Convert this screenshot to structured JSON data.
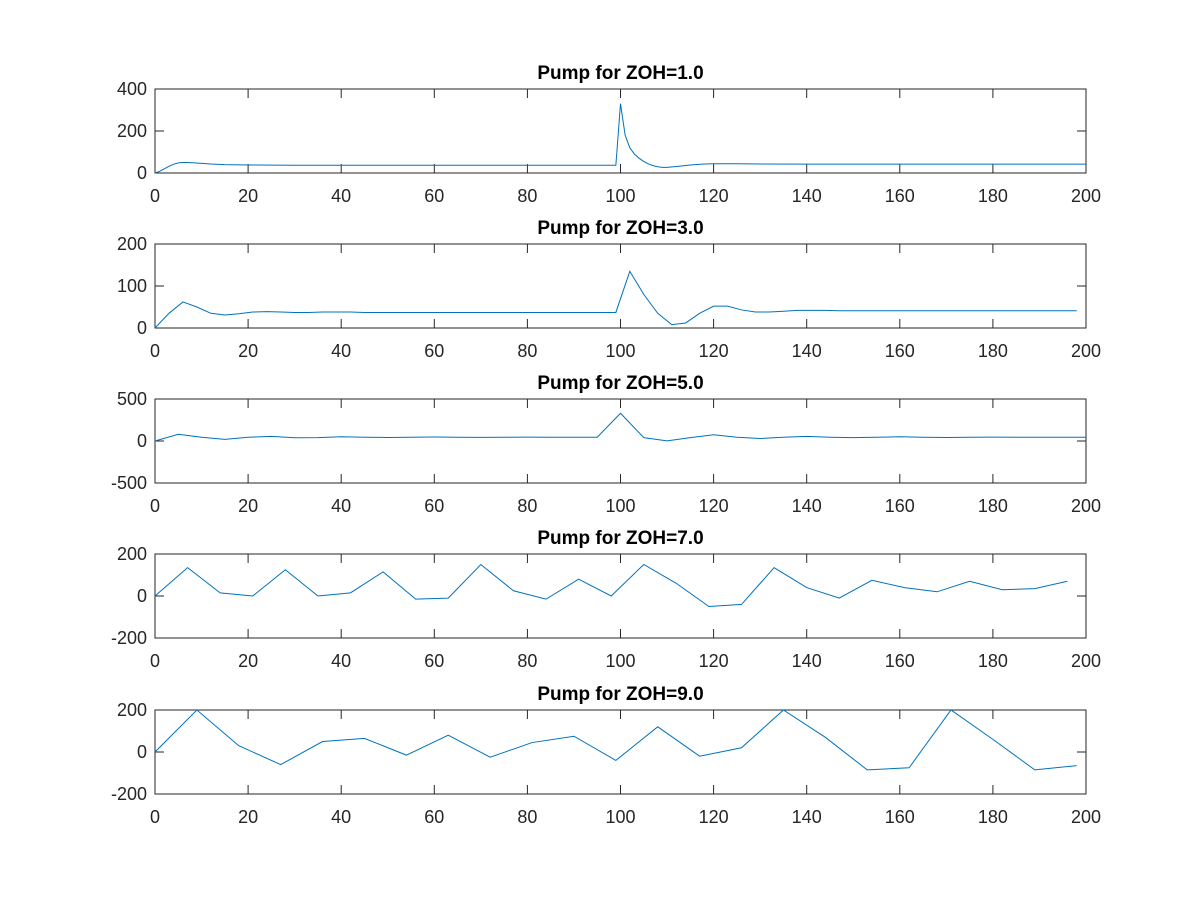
{
  "chart_data": [
    {
      "type": "line",
      "title": "Pump for ZOH=1.0",
      "xlim": [
        0,
        200
      ],
      "ylim": [
        0,
        400
      ],
      "xticks": [
        0,
        20,
        40,
        60,
        80,
        100,
        120,
        140,
        160,
        180,
        200
      ],
      "yticks": [
        0,
        200,
        400
      ],
      "series": [
        {
          "color": "#0072BD",
          "x": [
            0,
            1,
            2,
            3,
            4,
            5,
            6,
            7,
            8,
            10,
            12,
            15,
            20,
            30,
            40,
            60,
            80,
            99,
            100,
            101,
            102,
            103,
            104,
            105,
            106,
            107,
            108,
            109,
            110,
            112,
            115,
            118,
            120,
            125,
            130,
            140,
            150,
            160,
            180,
            200
          ],
          "y": [
            0,
            8,
            20,
            32,
            42,
            48,
            50,
            50,
            49,
            46,
            43,
            40,
            38,
            37,
            37,
            37,
            37,
            37,
            330,
            180,
            120,
            90,
            70,
            55,
            43,
            35,
            30,
            27,
            27,
            31,
            38,
            43,
            44,
            44,
            43,
            42,
            42,
            42,
            42,
            42
          ]
        }
      ]
    },
    {
      "type": "line",
      "title": "Pump for ZOH=3.0",
      "xlim": [
        0,
        200
      ],
      "ylim": [
        0,
        200
      ],
      "xticks": [
        0,
        20,
        40,
        60,
        80,
        100,
        120,
        140,
        160,
        180,
        200
      ],
      "yticks": [
        0,
        100,
        200
      ],
      "series": [
        {
          "color": "#0072BD",
          "x": [
            0,
            3,
            6,
            9,
            12,
            15,
            18,
            21,
            24,
            27,
            30,
            33,
            36,
            39,
            42,
            45,
            48,
            51,
            54,
            57,
            60,
            63,
            66,
            69,
            72,
            75,
            78,
            81,
            84,
            87,
            90,
            93,
            96,
            99,
            102,
            105,
            108,
            111,
            114,
            117,
            120,
            123,
            126,
            129,
            132,
            135,
            138,
            141,
            144,
            147,
            150,
            153,
            156,
            159,
            162,
            165,
            168,
            171,
            174,
            177,
            180,
            183,
            186,
            189,
            192,
            195,
            198
          ],
          "y": [
            0,
            35,
            62,
            50,
            35,
            31,
            34,
            38,
            39,
            38,
            37,
            37,
            38,
            38,
            38,
            37,
            37,
            37,
            37,
            37,
            37,
            37,
            37,
            37,
            37,
            37,
            37,
            37,
            37,
            37,
            37,
            37,
            37,
            37,
            135,
            80,
            35,
            8,
            12,
            35,
            52,
            52,
            43,
            38,
            38,
            40,
            42,
            42,
            42,
            41,
            41,
            41,
            41,
            41,
            41,
            41,
            41,
            41,
            41,
            41,
            41,
            41,
            41,
            41,
            41,
            41,
            41
          ]
        }
      ]
    },
    {
      "type": "line",
      "title": "Pump for ZOH=5.0",
      "xlim": [
        0,
        200
      ],
      "ylim": [
        -500,
        500
      ],
      "xticks": [
        0,
        20,
        40,
        60,
        80,
        100,
        120,
        140,
        160,
        180,
        200
      ],
      "yticks": [
        -500,
        0,
        500
      ],
      "series": [
        {
          "color": "#0072BD",
          "x": [
            0,
            5,
            10,
            15,
            20,
            25,
            30,
            35,
            40,
            45,
            50,
            55,
            60,
            65,
            70,
            75,
            80,
            85,
            90,
            95,
            100,
            105,
            110,
            115,
            120,
            125,
            130,
            135,
            140,
            145,
            150,
            155,
            160,
            165,
            170,
            175,
            180,
            185,
            190,
            195,
            200
          ],
          "y": [
            0,
            80,
            45,
            20,
            45,
            55,
            38,
            40,
            50,
            45,
            42,
            45,
            48,
            45,
            43,
            45,
            46,
            45,
            45,
            45,
            330,
            40,
            2,
            40,
            75,
            45,
            30,
            45,
            55,
            45,
            40,
            45,
            50,
            45,
            42,
            45,
            46,
            45,
            44,
            45,
            45
          ]
        }
      ]
    },
    {
      "type": "line",
      "title": "Pump for ZOH=7.0",
      "xlim": [
        0,
        200
      ],
      "ylim": [
        -200,
        200
      ],
      "xticks": [
        0,
        20,
        40,
        60,
        80,
        100,
        120,
        140,
        160,
        180,
        200
      ],
      "yticks": [
        -200,
        0,
        200
      ],
      "series": [
        {
          "color": "#0072BD",
          "x": [
            0,
            7,
            14,
            21,
            28,
            35,
            42,
            49,
            56,
            63,
            70,
            77,
            84,
            91,
            98,
            105,
            112,
            119,
            126,
            133,
            140,
            147,
            154,
            161,
            168,
            175,
            182,
            189,
            196
          ],
          "y": [
            0,
            135,
            15,
            0,
            125,
            0,
            15,
            115,
            -15,
            -10,
            150,
            25,
            -15,
            80,
            0,
            150,
            60,
            -50,
            -40,
            135,
            40,
            -10,
            75,
            40,
            20,
            70,
            30,
            35,
            70
          ]
        }
      ]
    },
    {
      "type": "line",
      "title": "Pump for ZOH=9.0",
      "xlim": [
        0,
        200
      ],
      "ylim": [
        -200,
        200
      ],
      "xticks": [
        0,
        20,
        40,
        60,
        80,
        100,
        120,
        140,
        160,
        180,
        200
      ],
      "yticks": [
        -200,
        0,
        200
      ],
      "series": [
        {
          "color": "#0072BD",
          "x": [
            0,
            9,
            18,
            27,
            36,
            45,
            54,
            63,
            72,
            81,
            90,
            99,
            108,
            117,
            126,
            135,
            144,
            153,
            162,
            171,
            180,
            189,
            198
          ],
          "y": [
            0,
            200,
            30,
            -60,
            50,
            65,
            -15,
            80,
            -25,
            45,
            75,
            -40,
            120,
            -20,
            20,
            200,
            70,
            -85,
            -75,
            200,
            60,
            -85,
            -65
          ]
        }
      ]
    }
  ]
}
